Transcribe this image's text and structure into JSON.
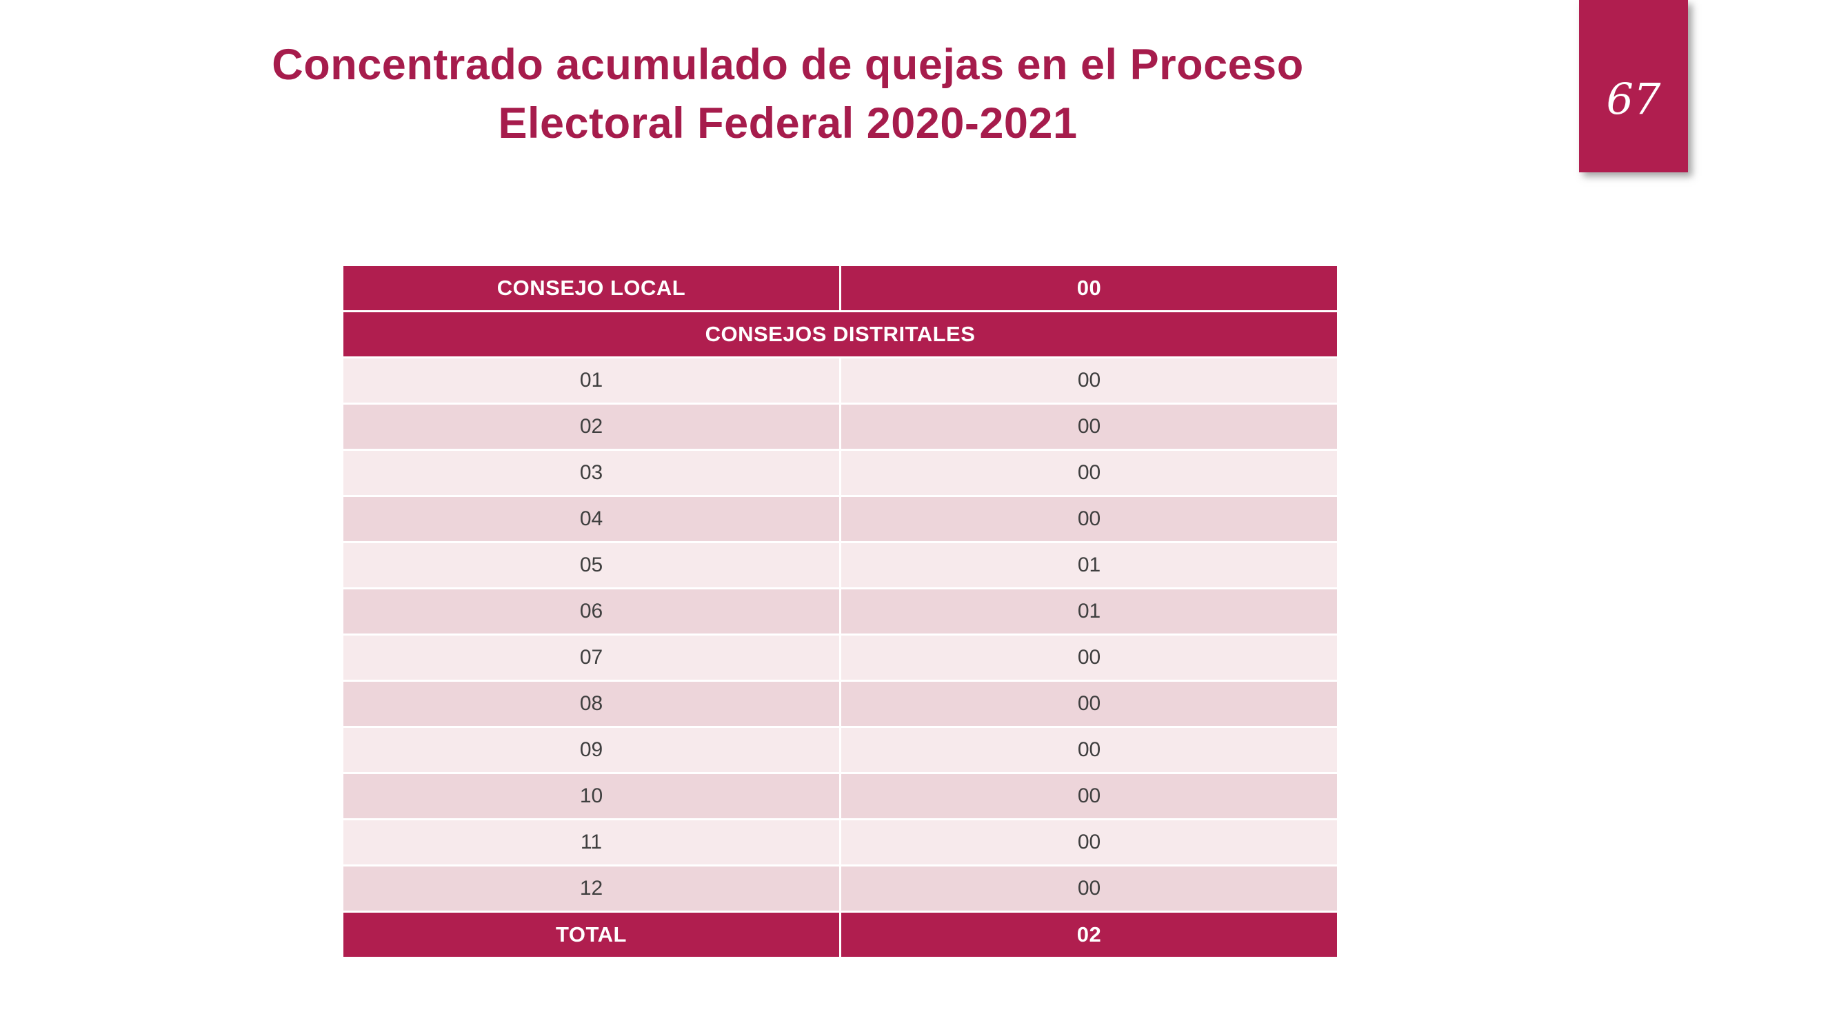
{
  "slide": {
    "title_line1": "Concentrado acumulado de quejas en el Proceso",
    "title_line2": "Electoral Federal 2020-2021",
    "page_number": "67"
  },
  "table": {
    "header": {
      "label": "CONSEJO LOCAL",
      "value": "00"
    },
    "section_header": "CONSEJOS DISTRITALES",
    "rows": [
      {
        "label": "01",
        "value": "00"
      },
      {
        "label": "02",
        "value": "00"
      },
      {
        "label": "03",
        "value": "00"
      },
      {
        "label": "04",
        "value": "00"
      },
      {
        "label": "05",
        "value": "01"
      },
      {
        "label": "06",
        "value": "01"
      },
      {
        "label": "07",
        "value": "00"
      },
      {
        "label": "08",
        "value": "00"
      },
      {
        "label": "09",
        "value": "00"
      },
      {
        "label": "10",
        "value": "00"
      },
      {
        "label": "11",
        "value": "00"
      },
      {
        "label": "12",
        "value": "00"
      }
    ],
    "total": {
      "label": "TOTAL",
      "value": "02"
    }
  },
  "colors": {
    "accent": "#B01E4F",
    "title_color": "#A61C4C",
    "row_light": "#F7EAEC",
    "row_dark": "#EDD5DA",
    "text_dark": "#3F3F3F"
  }
}
